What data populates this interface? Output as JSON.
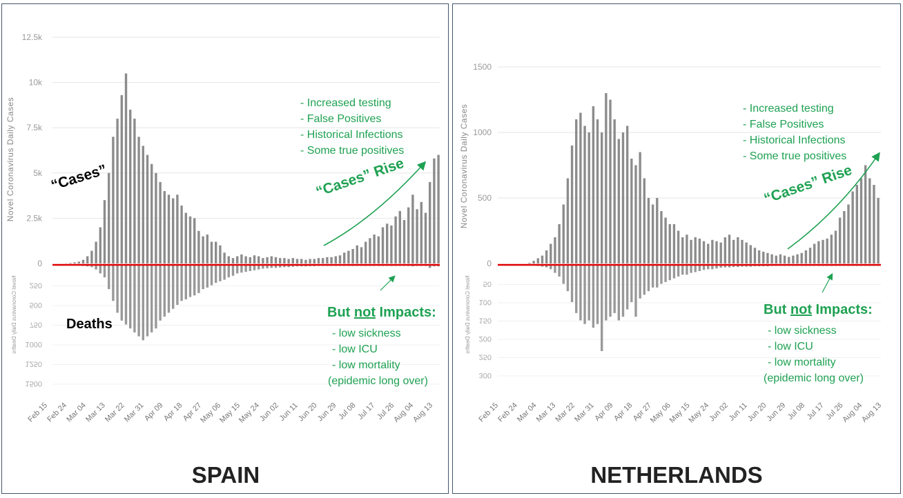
{
  "colors": {
    "bar": "#8c8c8c",
    "zero_line": "#e00000",
    "annotation": "#1ea152",
    "grid": "#e6e6e6",
    "axis_text": "#999999"
  },
  "chart_data": [
    {
      "type": "bar",
      "title": "SPAIN",
      "ylabel": "Novel Coronavirus Daily Cases",
      "ylabel_deaths": "Novel Coronavirus Daily Deaths",
      "bin_days": 2,
      "start": "Feb 15",
      "x_ticks": [
        "Feb 15",
        "Feb 24",
        "Mar 04",
        "Mar 13",
        "Mar 22",
        "Mar 31",
        "Apr 09",
        "Apr 18",
        "Apr 27",
        "May 06",
        "May 15",
        "May 24",
        "Jun 02",
        "Jun 11",
        "Jun 20",
        "Jun 29",
        "Jul 08",
        "Jul 17",
        "Jul 26",
        "Aug 04",
        "Aug 13"
      ],
      "y_ticks": [
        {
          "v": 0,
          "label": "0"
        },
        {
          "v": 2500,
          "label": "2.5k"
        },
        {
          "v": 5000,
          "label": "5k"
        },
        {
          "v": 7500,
          "label": "7.5k"
        },
        {
          "v": 10000,
          "label": "10k"
        },
        {
          "v": 12500,
          "label": "12.5k"
        }
      ],
      "y_ticks_deaths": [
        {
          "v": 250,
          "label": "250"
        },
        {
          "v": 500,
          "label": "500"
        },
        {
          "v": 750,
          "label": "750"
        },
        {
          "v": 1000,
          "label": "1000"
        },
        {
          "v": 1250,
          "label": "1250"
        },
        {
          "v": 1500,
          "label": "1500"
        }
      ],
      "ylim": [
        0,
        12500
      ],
      "ylim_deaths": [
        0,
        1500
      ],
      "cases": [
        0,
        0,
        0,
        0,
        0,
        10,
        30,
        60,
        100,
        200,
        400,
        700,
        1200,
        2000,
        3500,
        5000,
        7000,
        8000,
        9300,
        10500,
        8500,
        8000,
        7000,
        6500,
        6000,
        5500,
        5000,
        4500,
        4000,
        3800,
        3600,
        3800,
        3200,
        2800,
        2600,
        2500,
        1800,
        1500,
        1600,
        1200,
        1200,
        1000,
        600,
        400,
        300,
        400,
        500,
        400,
        350,
        450,
        400,
        300,
        350,
        400,
        350,
        300,
        300,
        250,
        300,
        250,
        250,
        200,
        250,
        250,
        300,
        300,
        350,
        350,
        400,
        450,
        600,
        700,
        800,
        1000,
        900,
        1200,
        1400,
        1600,
        1500,
        2000,
        2200,
        2100,
        2600,
        2900,
        2400,
        3100,
        3800,
        3000,
        3400,
        2800,
        4500,
        5800,
        6000
      ],
      "deaths": [
        0,
        0,
        0,
        0,
        0,
        0,
        0,
        0,
        0,
        5,
        10,
        20,
        50,
        100,
        150,
        300,
        450,
        600,
        700,
        750,
        800,
        850,
        900,
        950,
        900,
        850,
        800,
        700,
        650,
        600,
        550,
        500,
        450,
        430,
        400,
        380,
        350,
        300,
        280,
        250,
        220,
        200,
        180,
        150,
        130,
        100,
        90,
        80,
        70,
        60,
        50,
        40,
        35,
        30,
        30,
        25,
        20,
        20,
        15,
        10,
        10,
        10,
        8,
        8,
        5,
        5,
        5,
        5,
        5,
        5,
        5,
        5,
        5,
        5,
        5,
        5,
        5,
        5,
        5,
        5,
        5,
        5,
        5,
        5,
        5,
        5,
        10,
        5,
        5,
        5,
        30,
        10,
        10
      ],
      "annotations": {
        "causes": [
          "- Increased testing",
          "- False Positives",
          "- Historical Infections",
          "- Some true positives"
        ],
        "rise": "“Cases” Rise",
        "impacts_pre": "But ",
        "impacts_not": "not",
        "impacts_post": " Impacts:",
        "impacts": [
          "- low sickness",
          "- low ICU",
          "- low mortality",
          "(epidemic long over)"
        ],
        "cases_label": "“Cases”",
        "deaths_label": "Deaths"
      }
    },
    {
      "type": "bar",
      "title": "NETHERLANDS",
      "ylabel": "Novel Coronavirus Daily Cases",
      "ylabel_deaths": "Novel Coronavirus Daily Deaths",
      "bin_days": 2,
      "start": "Feb 15",
      "x_ticks": [
        "Feb 15",
        "Feb 24",
        "Mar 04",
        "Mar 13",
        "Mar 22",
        "Mar 31",
        "Apr 09",
        "Apr 18",
        "Apr 27",
        "May 06",
        "May 15",
        "May 24",
        "Jun 02",
        "Jun 11",
        "Jun 20",
        "Jun 29",
        "Jul 08",
        "Jul 17",
        "Jul 26",
        "Aug 04",
        "Aug 13"
      ],
      "y_ticks": [
        {
          "v": 0,
          "label": "0"
        },
        {
          "v": 500,
          "label": "500"
        },
        {
          "v": 1000,
          "label": "1000"
        },
        {
          "v": 1500,
          "label": "1500"
        }
      ],
      "y_ticks_deaths": [
        {
          "v": 50,
          "label": "50"
        },
        {
          "v": 100,
          "label": "100"
        },
        {
          "v": 150,
          "label": "150"
        },
        {
          "v": 200,
          "label": "200"
        },
        {
          "v": 250,
          "label": "250"
        },
        {
          "v": 300,
          "label": "300"
        }
      ],
      "ylim": [
        0,
        1500
      ],
      "ylim_deaths": [
        0,
        300
      ],
      "cases": [
        0,
        0,
        0,
        0,
        0,
        0,
        0,
        0,
        5,
        20,
        40,
        60,
        100,
        150,
        200,
        300,
        450,
        650,
        900,
        1100,
        1150,
        1050,
        1000,
        1200,
        1100,
        1000,
        1300,
        1250,
        1100,
        950,
        1000,
        1050,
        800,
        750,
        850,
        650,
        500,
        450,
        500,
        400,
        350,
        300,
        300,
        250,
        200,
        220,
        180,
        200,
        190,
        170,
        150,
        180,
        170,
        160,
        200,
        220,
        180,
        200,
        180,
        160,
        140,
        120,
        100,
        90,
        80,
        70,
        60,
        70,
        60,
        50,
        60,
        70,
        80,
        100,
        120,
        150,
        170,
        180,
        190,
        220,
        250,
        350,
        400,
        450,
        550,
        600,
        650,
        750,
        650,
        600,
        500
      ],
      "deaths": [
        0,
        0,
        0,
        0,
        0,
        0,
        0,
        0,
        0,
        0,
        1,
        3,
        5,
        10,
        20,
        30,
        50,
        70,
        100,
        130,
        150,
        160,
        150,
        170,
        160,
        234,
        150,
        140,
        130,
        150,
        140,
        120,
        100,
        140,
        90,
        80,
        70,
        60,
        60,
        50,
        45,
        40,
        35,
        30,
        25,
        25,
        20,
        18,
        15,
        12,
        10,
        10,
        8,
        6,
        5,
        5,
        4,
        4,
        3,
        3,
        3,
        2,
        2,
        2,
        2,
        1,
        1,
        1,
        1,
        1,
        1,
        1,
        1,
        1,
        1,
        1,
        1,
        1,
        1,
        1,
        1,
        1,
        1,
        1,
        1,
        1,
        1,
        1,
        1,
        1,
        1
      ],
      "annotations": {
        "causes": [
          "- Increased testing",
          "- False Positives",
          "- Historical Infections",
          "- Some true positives"
        ],
        "rise": "“Cases” Rise",
        "impacts_pre": "But ",
        "impacts_not": "not",
        "impacts_post": " Impacts:",
        "impacts": [
          "- low sickness",
          "- low ICU",
          "- low mortality",
          "(epidemic long over)"
        ]
      }
    }
  ]
}
